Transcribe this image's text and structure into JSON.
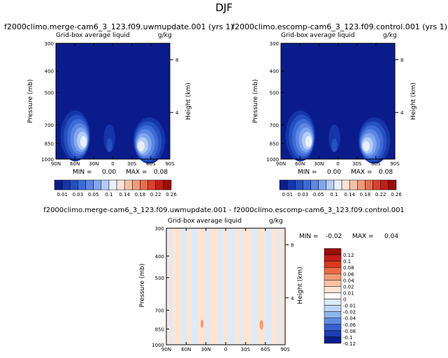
{
  "supertitle": "DJF",
  "chart_data": [
    {
      "type": "heatmap",
      "title": "f2000climo.merge-cam6_3_123.f09.uwmupdate.001 (yrs 1)",
      "left_subtitle": "Grid-box average liquid",
      "right_subtitle": "g/kg",
      "ylabel": "Pressure (mb)",
      "ylabel_right": "Height (km)",
      "x_ticks": [
        "90N",
        "60N",
        "30N",
        "0",
        "30S",
        "60S",
        "90S"
      ],
      "y_ticks": [
        "300",
        "400",
        "500",
        "700",
        "850",
        "1000"
      ],
      "y_right_ticks": [
        "8",
        "4"
      ],
      "min_label": "MIN =",
      "min_value": "0.00",
      "max_label": "MAX =",
      "max_value": "0.08",
      "colorbar_labels": [
        "0.01",
        "0.03",
        "0.05",
        "0.1",
        "0.14",
        "0.18",
        "0.22",
        "0.26"
      ]
    },
    {
      "type": "heatmap",
      "title": "f2000climo.escomp-cam6_3_123.f09.control.001 (yrs 1)",
      "left_subtitle": "Grid-box average liquid",
      "right_subtitle": "g/kg",
      "ylabel": "Pressure (mb)",
      "ylabel_right": "Height (km)",
      "x_ticks": [
        "90N",
        "60N",
        "30N",
        "0",
        "30S",
        "60S",
        "90S"
      ],
      "y_ticks": [
        "300",
        "400",
        "500",
        "700",
        "850",
        "1000"
      ],
      "y_right_ticks": [
        "8",
        "4"
      ],
      "min_label": "MIN =",
      "min_value": "0.00",
      "max_label": "MAX =",
      "max_value": "0.08",
      "colorbar_labels": [
        "0.01",
        "0.03",
        "0.05",
        "0.1",
        "0.14",
        "0.18",
        "0.22",
        "0.26"
      ]
    },
    {
      "type": "heatmap",
      "title": "f2000climo.merge-cam6_3_123.f09.uwmupdate.001 - f2000climo.escomp-cam6_3_123.f09.control.001",
      "left_subtitle": "Grid-box average liquid",
      "right_subtitle": "g/kg",
      "ylabel": "Pressure (mb)",
      "ylabel_right": "Height (km)",
      "x_ticks": [
        "90N",
        "60N",
        "30N",
        "0",
        "30S",
        "60S",
        "90S"
      ],
      "y_ticks": [
        "300",
        "400",
        "500",
        "700",
        "850",
        "1000"
      ],
      "y_right_ticks": [
        "8",
        "4"
      ],
      "min_label": "MIN =",
      "min_value": "-0.02",
      "max_label": "MAX =",
      "max_value": "0.04",
      "colorbar_labels": [
        "0.12",
        "0.1",
        "0.08",
        "0.06",
        "0.04",
        "0.02",
        "0.01",
        "0",
        "-0.01",
        "-0.02",
        "-0.04",
        "-0.06",
        "-0.08",
        "-0.1",
        "-0.12"
      ]
    }
  ],
  "colors": {
    "seq_background": "#0a1c8c",
    "seq_levels": [
      "#0a1c8c",
      "#1535a8",
      "#2450c0",
      "#3d6ad6",
      "#5b86e3",
      "#82a6ee",
      "#b4cdf6",
      "#e9f0fb",
      "#fbe3d4",
      "#f7c1a6",
      "#f19a7a",
      "#e86c50",
      "#d9412c",
      "#c01e17",
      "#9a0d0a"
    ],
    "diff_levels": [
      "#9a0d0a",
      "#c01e17",
      "#dd3a22",
      "#ee6b44",
      "#f59a73",
      "#fac3a4",
      "#fde4d3",
      "#ffffff",
      "#dcebfb",
      "#bcd6f6",
      "#8fb5ee",
      "#5f8ae2",
      "#3660d2",
      "#1c3eb4",
      "#0a1c8c"
    ],
    "diff_pos": "#fde4d3",
    "diff_neg": "#dcebfb"
  }
}
